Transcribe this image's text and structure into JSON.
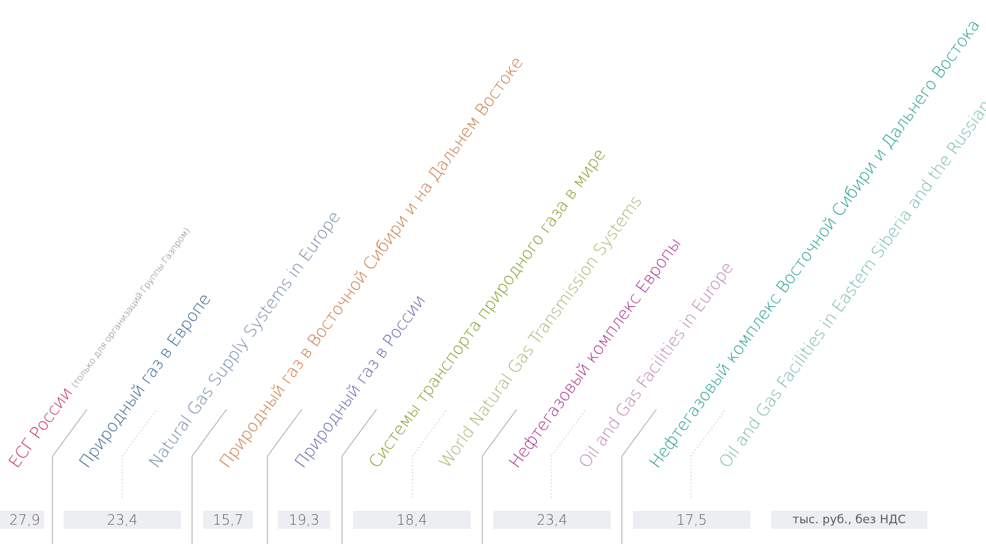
{
  "titles": [
    {
      "text": "ЕСГ России",
      "note": "(только для организаций Группы Газпром)",
      "color": "#c8245a"
    },
    {
      "text": "Природный газ в Европе",
      "color": "#2f5e8e"
    },
    {
      "text": "Natural Gas Supply Systems in Europe",
      "color": "#6d86a8"
    },
    {
      "text": "Природный газ в Восточной Сибири и на Дальнем Востоке",
      "color": "#c8723a"
    },
    {
      "text": "Природный газ в России",
      "color": "#5a5ea8"
    },
    {
      "text": "Системы транспорта природного газа в мире",
      "color": "#7a9a1f"
    },
    {
      "text": "World Natural Gas Transmission Systems",
      "color": "#a4b36a"
    },
    {
      "text": "Нефтегазовый комплекс Европы",
      "color": "#a02a8a"
    },
    {
      "text": "Oil and Gas Facilities in Europe",
      "color": "#c07db0"
    },
    {
      "text": "Нефтегазовый комплекс Восточной Сибири и Дальнего Востока",
      "color": "#1a9a8c"
    },
    {
      "text": "Oil and Gas Facilities in Eastern Siberia and the Russian Far East",
      "color": "#6fb8ac"
    }
  ],
  "prices": [
    "27,9",
    "23,4",
    "15,7",
    "19,3",
    "18,4",
    "23,4",
    "17,5"
  ],
  "unit_label": "тыс. руб., без НДС"
}
